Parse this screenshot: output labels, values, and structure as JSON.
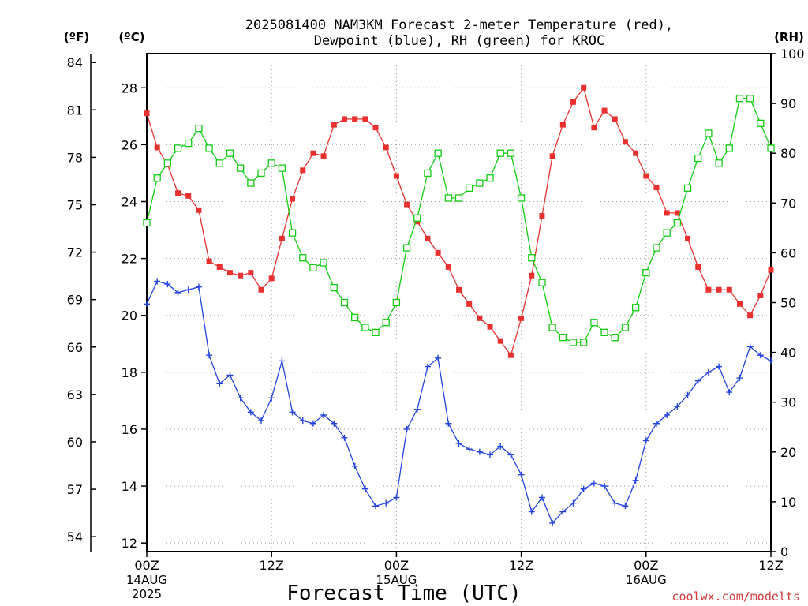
{
  "title_line1": "2025081400 NAM3KM Forecast 2-meter Temperature (red),",
  "title_line2": "Dewpoint (blue), RH (green) for KROC",
  "units": {
    "f": "(ºF)",
    "c": "(ºC)",
    "rh": "(RH)"
  },
  "xlabel": "Forecast Time (UTC)",
  "credit": "coolwx.com/modelts",
  "colors": {
    "temperature": "#e8312f",
    "dewpoint": "#2243e0",
    "rh": "#12cc12"
  },
  "chart_data": {
    "type": "line",
    "title": "2025081400 NAM3KM Forecast 2-meter Temperature (red), Dewpoint (blue), RH (green) for KROC",
    "xlabel": "Forecast Time (UTC)",
    "x_unit": "forecast hour",
    "xlim": [
      0,
      60
    ],
    "x_ticks": [
      {
        "x": 0,
        "label": "00Z",
        "sub1": "14AUG",
        "sub2": "2025"
      },
      {
        "x": 12,
        "label": "12Z",
        "sub1": "",
        "sub2": ""
      },
      {
        "x": 24,
        "label": "00Z",
        "sub1": "15AUG",
        "sub2": ""
      },
      {
        "x": 36,
        "label": "12Z",
        "sub1": "",
        "sub2": ""
      },
      {
        "x": 48,
        "label": "00Z",
        "sub1": "16AUG",
        "sub2": ""
      },
      {
        "x": 60,
        "label": "12Z",
        "sub1": "",
        "sub2": ""
      }
    ],
    "y_left_c": {
      "range": [
        11.7,
        29.2
      ],
      "ticks": [
        12,
        14,
        16,
        18,
        20,
        22,
        24,
        26,
        28
      ]
    },
    "y_left_f": {
      "range": [
        53.06,
        84.56
      ],
      "ticks": [
        54,
        57,
        60,
        63,
        66,
        69,
        72,
        75,
        78,
        81,
        84
      ]
    },
    "y_right_rh": {
      "range": [
        0,
        100
      ],
      "ticks": [
        0,
        10,
        20,
        30,
        40,
        50,
        60,
        70,
        80,
        90,
        100
      ]
    },
    "grid": true,
    "series": [
      {
        "name": "Temperature",
        "axis": "c",
        "marker": "filled-square",
        "x": [
          0,
          1,
          2,
          3,
          4,
          5,
          6,
          7,
          8,
          9,
          10,
          11,
          12,
          13,
          14,
          15,
          16,
          17,
          18,
          19,
          20,
          21,
          22,
          23,
          24,
          25,
          26,
          27,
          28,
          29,
          30,
          31,
          32,
          33,
          34,
          35,
          36,
          37,
          38,
          39,
          40,
          41,
          42,
          43,
          44,
          45,
          46,
          47,
          48,
          49,
          50,
          51,
          52,
          53,
          54,
          55,
          56,
          57,
          58,
          59,
          60
        ],
        "values": [
          27.1,
          25.9,
          25.3,
          24.3,
          24.2,
          23.7,
          21.9,
          21.7,
          21.5,
          21.4,
          21.5,
          20.9,
          21.3,
          22.7,
          24.1,
          25.1,
          25.7,
          25.6,
          26.7,
          26.9,
          26.9,
          26.9,
          26.6,
          25.9,
          24.9,
          23.9,
          23.3,
          22.7,
          22.2,
          21.7,
          20.9,
          20.4,
          19.9,
          19.6,
          19.1,
          18.6,
          19.9,
          21.4,
          23.5,
          25.6,
          26.7,
          27.5,
          28.0,
          26.6,
          27.2,
          26.9,
          26.1,
          25.7,
          24.9,
          24.5,
          23.6,
          23.6,
          22.7,
          21.7,
          20.9,
          20.9,
          20.9,
          20.4,
          20.0,
          20.7,
          21.6
        ]
      },
      {
        "name": "Dewpoint",
        "axis": "c",
        "marker": "plus",
        "x": [
          0,
          1,
          2,
          3,
          4,
          5,
          6,
          7,
          8,
          9,
          10,
          11,
          12,
          13,
          14,
          15,
          16,
          17,
          18,
          19,
          20,
          21,
          22,
          23,
          24,
          25,
          26,
          27,
          28,
          29,
          30,
          31,
          32,
          33,
          34,
          35,
          36,
          37,
          38,
          39,
          40,
          41,
          42,
          43,
          44,
          45,
          46,
          47,
          48,
          49,
          50,
          51,
          52,
          53,
          54,
          55,
          56,
          57,
          58,
          59,
          60
        ],
        "values": [
          20.4,
          21.2,
          21.1,
          20.8,
          20.9,
          21.0,
          18.6,
          17.6,
          17.9,
          17.1,
          16.6,
          16.3,
          17.1,
          18.4,
          16.6,
          16.3,
          16.2,
          16.5,
          16.2,
          15.7,
          14.7,
          13.9,
          13.3,
          13.4,
          13.6,
          16.0,
          16.7,
          18.2,
          18.5,
          16.2,
          15.5,
          15.3,
          15.2,
          15.1,
          15.4,
          15.1,
          14.4,
          13.1,
          13.6,
          12.7,
          13.1,
          13.4,
          13.9,
          14.1,
          14.0,
          13.4,
          13.3,
          14.2,
          15.6,
          16.2,
          16.5,
          16.8,
          17.2,
          17.7,
          18.0,
          18.2,
          17.3,
          17.8,
          18.9,
          18.6,
          18.4
        ]
      },
      {
        "name": "RH",
        "axis": "rh",
        "marker": "open-square",
        "x": [
          0,
          1,
          2,
          3,
          4,
          5,
          6,
          7,
          8,
          9,
          10,
          11,
          12,
          13,
          14,
          15,
          16,
          17,
          18,
          19,
          20,
          21,
          22,
          23,
          24,
          25,
          26,
          27,
          28,
          29,
          30,
          31,
          32,
          33,
          34,
          35,
          36,
          37,
          38,
          39,
          40,
          41,
          42,
          43,
          44,
          45,
          46,
          47,
          48,
          49,
          50,
          51,
          52,
          53,
          54,
          55,
          56,
          57,
          58,
          59,
          60
        ],
        "values": [
          66,
          75,
          78,
          81,
          82,
          85,
          81,
          78,
          80,
          77,
          74,
          76,
          78,
          77,
          64,
          59,
          57,
          58,
          53,
          50,
          47,
          45,
          44,
          46,
          50,
          61,
          67,
          76,
          80,
          71,
          71,
          73,
          74,
          75,
          80,
          80,
          71,
          59,
          54,
          45,
          43,
          42,
          42,
          46,
          44,
          43,
          45,
          49,
          56,
          61,
          64,
          66,
          73,
          79,
          84,
          78,
          81,
          91,
          91,
          86,
          81
        ]
      }
    ]
  }
}
